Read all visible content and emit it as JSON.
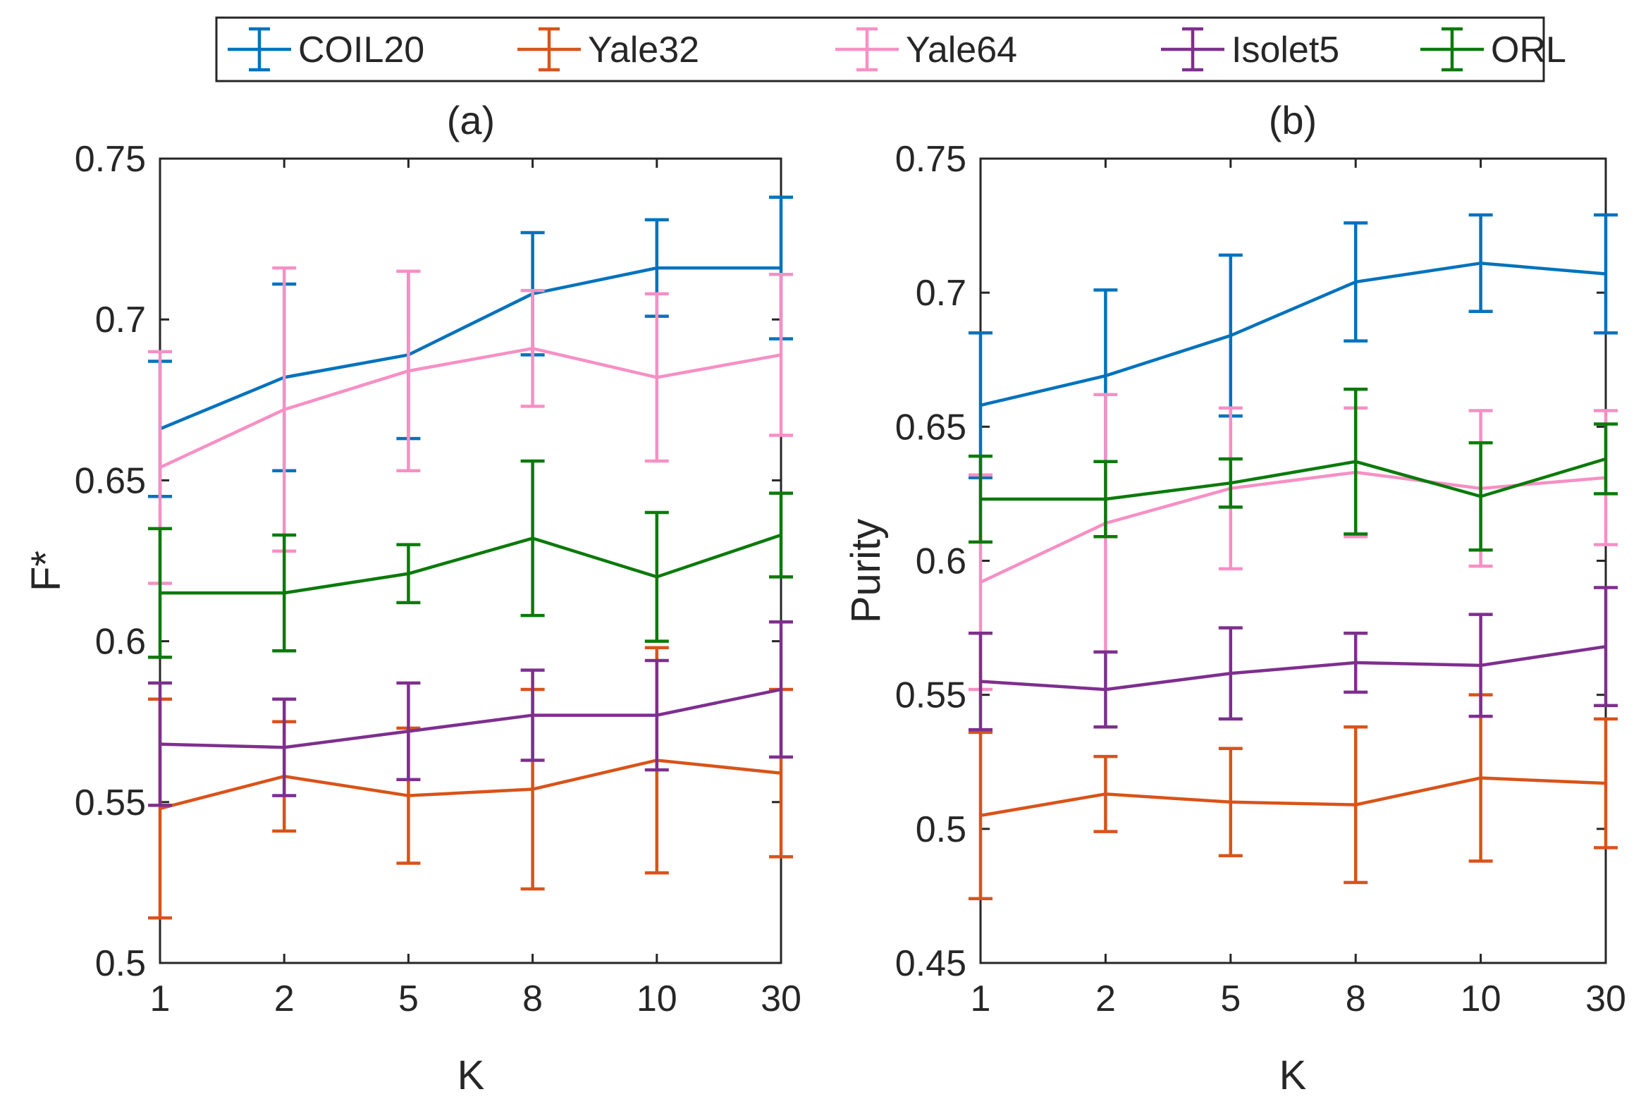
{
  "chart_data": {
    "type": "line",
    "legend": {
      "placement": "top-center",
      "entries": [
        {
          "name": "COIL20",
          "color": "#0072BD"
        },
        {
          "name": "Yale32",
          "color": "#D95319"
        },
        {
          "name": "Yale64",
          "color": "#F78FC4"
        },
        {
          "name": "Isolet5",
          "color": "#7E2F8E"
        },
        {
          "name": "ORL",
          "color": "#0A7A0A"
        }
      ]
    },
    "categories": [
      "1",
      "2",
      "5",
      "8",
      "10",
      "30"
    ],
    "panels": [
      {
        "id": "a",
        "title": "(a)",
        "xlabel": "K",
        "ylabel": "F*",
        "ylim": [
          0.5,
          0.75
        ],
        "yticks": [
          "0.5",
          "0.55",
          "0.6",
          "0.65",
          "0.7",
          "0.75"
        ],
        "yticks_values": [
          0.5,
          0.55,
          0.6,
          0.65,
          0.7,
          0.75
        ],
        "series": [
          {
            "name": "COIL20",
            "values": [
              0.666,
              0.682,
              0.689,
              0.708,
              0.716,
              0.716
            ],
            "errors": [
              0.021,
              0.029,
              0.026,
              0.019,
              0.015,
              0.022
            ]
          },
          {
            "name": "Yale32",
            "values": [
              0.548,
              0.558,
              0.552,
              0.554,
              0.563,
              0.559
            ],
            "errors": [
              0.034,
              0.017,
              0.021,
              0.031,
              0.035,
              0.026
            ]
          },
          {
            "name": "Yale64",
            "values": [
              0.654,
              0.672,
              0.684,
              0.691,
              0.682,
              0.689
            ],
            "errors": [
              0.036,
              0.044,
              0.031,
              0.018,
              0.026,
              0.025
            ]
          },
          {
            "name": "Isolet5",
            "values": [
              0.568,
              0.567,
              0.572,
              0.577,
              0.577,
              0.585
            ],
            "errors": [
              0.019,
              0.015,
              0.015,
              0.014,
              0.017,
              0.021
            ]
          },
          {
            "name": "ORL",
            "values": [
              0.615,
              0.615,
              0.621,
              0.632,
              0.62,
              0.633
            ],
            "errors": [
              0.02,
              0.018,
              0.009,
              0.024,
              0.02,
              0.013
            ]
          }
        ]
      },
      {
        "id": "b",
        "title": "(b)",
        "xlabel": "K",
        "ylabel": "Purity",
        "ylim": [
          0.45,
          0.75
        ],
        "yticks": [
          "0.45",
          "0.5",
          "0.55",
          "0.6",
          "0.65",
          "0.7",
          "0.75"
        ],
        "yticks_values": [
          0.45,
          0.5,
          0.55,
          0.6,
          0.65,
          0.7,
          0.75
        ],
        "series": [
          {
            "name": "COIL20",
            "values": [
              0.658,
              0.669,
              0.684,
              0.704,
              0.711,
              0.707
            ],
            "errors": [
              0.027,
              0.032,
              0.03,
              0.022,
              0.018,
              0.022
            ]
          },
          {
            "name": "Yale32",
            "values": [
              0.505,
              0.513,
              0.51,
              0.509,
              0.519,
              0.517
            ],
            "errors": [
              0.031,
              0.014,
              0.02,
              0.029,
              0.031,
              0.024
            ]
          },
          {
            "name": "Yale64",
            "values": [
              0.592,
              0.614,
              0.627,
              0.633,
              0.627,
              0.631
            ],
            "errors": [
              0.04,
              0.048,
              0.03,
              0.024,
              0.029,
              0.025
            ]
          },
          {
            "name": "Isolet5",
            "values": [
              0.555,
              0.552,
              0.558,
              0.562,
              0.561,
              0.568
            ],
            "errors": [
              0.018,
              0.014,
              0.017,
              0.011,
              0.019,
              0.022
            ]
          },
          {
            "name": "ORL",
            "values": [
              0.623,
              0.623,
              0.629,
              0.637,
              0.624,
              0.638
            ],
            "errors": [
              0.016,
              0.014,
              0.009,
              0.027,
              0.02,
              0.013
            ]
          }
        ]
      }
    ]
  }
}
